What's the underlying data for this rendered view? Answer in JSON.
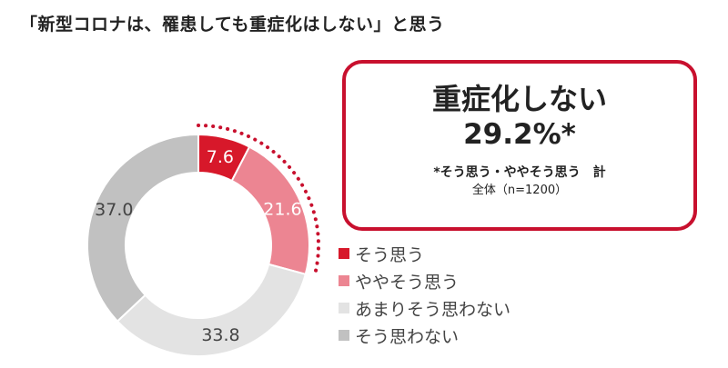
{
  "title": "「新型コロナは、罹患しても重症化はしない」と思う",
  "callout": {
    "headline": "重症化しない",
    "value": "29.2%*",
    "note": "*そう思う・ややそう思う　計",
    "base": "全体（n=1200）"
  },
  "colors": {
    "accent": "#c8102e",
    "dots": "#c8102e"
  },
  "chart_data": {
    "type": "pie",
    "categories": [
      "そう思う",
      "ややそう思う",
      "あまりそう思わない",
      "そう思わない"
    ],
    "values": [
      7.6,
      21.6,
      33.8,
      37.0
    ],
    "labels": [
      "7.6",
      "21.6",
      "33.8",
      "37.0"
    ],
    "colors": [
      "#d7182a",
      "#ec8592",
      "#e3e3e3",
      "#c1c1c1"
    ],
    "donut": true,
    "legend": "right"
  }
}
